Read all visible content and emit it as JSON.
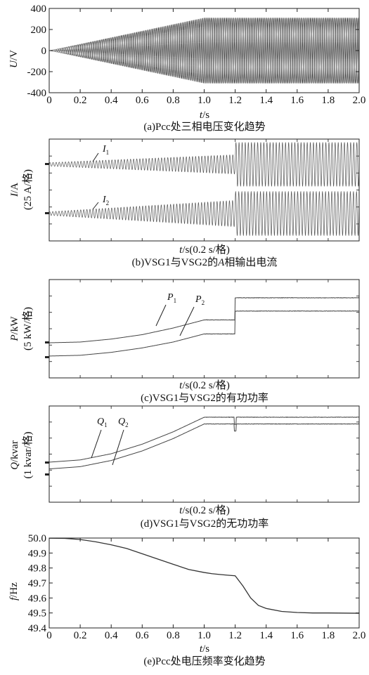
{
  "chart_data": [
    {
      "type": "line",
      "caption": "(a)Pcc处三相电压变化趋势",
      "xlabel_var": "t",
      "xlabel_unit": "/s",
      "ylabel_var": "U",
      "ylabel_unit": "/V",
      "xlim": [
        0,
        2.0
      ],
      "ylim": [
        -400,
        400
      ],
      "x_ticks": [
        "0",
        "0.2",
        "0.4",
        "0.6",
        "0.8",
        "1.0",
        "1.2",
        "1.4",
        "1.6",
        "1.8",
        "2.0"
      ],
      "y_ticks": [
        "400",
        "200",
        "0",
        "-200",
        "-400"
      ],
      "envelope": {
        "x": [
          0,
          1.0,
          2.0
        ],
        "amplitude": [
          0,
          311,
          311
        ]
      },
      "series": [
        {
          "style": "three-phase sinusoid"
        }
      ]
    },
    {
      "type": "line",
      "caption": "(b)VSG1与VSG2的A相输出电流",
      "xlabel": "t/s(0.2 s/格)",
      "ylabel": "I/A",
      "ylabel2": "(25 A/格)",
      "series": [
        {
          "name": "I",
          "sub": "1",
          "envelope_x": [
            0,
            1.2,
            1.2,
            2.0
          ],
          "amplitude_div": [
            0.1,
            0.55,
            1.25,
            1.25
          ]
        },
        {
          "name": "I",
          "sub": "2",
          "envelope_x": [
            0,
            1.2,
            1.2,
            2.0
          ],
          "amplitude_div": [
            0.1,
            0.75,
            1.25,
            1.25
          ]
        }
      ]
    },
    {
      "type": "line",
      "caption": "(c)VSG1与VSG2的有功功率",
      "xlabel": "t/s(0.2 s/格)",
      "ylabel": "P/kW",
      "ylabel2": "(5 kW/格)",
      "series": [
        {
          "name": "P",
          "sub": "1",
          "x": [
            0,
            0.2,
            0.4,
            0.6,
            0.8,
            1.0,
            1.2,
            1.2,
            2.0
          ],
          "y_div": [
            0,
            0.05,
            0.25,
            0.55,
            1.0,
            1.55,
            1.55,
            3.05,
            3.05
          ]
        },
        {
          "name": "P",
          "sub": "2",
          "x": [
            0,
            0.2,
            0.4,
            0.6,
            0.8,
            1.0,
            1.2,
            1.2,
            2.0
          ],
          "y_div": [
            -0.9,
            -0.85,
            -0.65,
            -0.35,
            0.05,
            0.6,
            0.6,
            2.15,
            2.15
          ]
        }
      ]
    },
    {
      "type": "line",
      "caption": "(d)VSG1与VSG2的无功功率",
      "xlabel": "t/s(0.2 s/格)",
      "ylabel": "Q/kvar",
      "ylabel2": "(1 kvar/格)",
      "series": [
        {
          "name": "Q",
          "sub": "1",
          "x": [
            0,
            0.2,
            0.4,
            0.6,
            0.8,
            1.0,
            2.0
          ],
          "y_div": [
            0,
            0.2,
            0.75,
            1.6,
            2.7,
            4.0,
            4.0
          ]
        },
        {
          "name": "Q",
          "sub": "2",
          "x": [
            0,
            0.2,
            0.4,
            0.6,
            0.8,
            1.0,
            2.0
          ],
          "y_div": [
            -0.6,
            -0.4,
            0.15,
            1.0,
            2.1,
            3.4,
            3.4
          ]
        }
      ]
    },
    {
      "type": "line",
      "caption": "(e)Pcc处电压频率变化趋势",
      "xlabel_var": "t",
      "xlabel_unit": "/s",
      "ylabel_var": "f",
      "ylabel_unit": "/Hz",
      "xlim": [
        0,
        2.0
      ],
      "ylim": [
        49.4,
        50.0
      ],
      "x_ticks": [
        "0",
        "0.2",
        "0.4",
        "0.6",
        "0.8",
        "1.0",
        "1.2",
        "1.4",
        "1.6",
        "1.8",
        "2.0"
      ],
      "y_ticks": [
        "50.0",
        "49.9",
        "49.8",
        "49.7",
        "49.6",
        "49.5",
        "49.4"
      ],
      "series": [
        {
          "x": [
            0,
            0.1,
            0.2,
            0.3,
            0.4,
            0.5,
            0.6,
            0.7,
            0.8,
            0.9,
            1.0,
            1.05,
            1.1,
            1.15,
            1.2,
            1.25,
            1.3,
            1.35,
            1.4,
            1.5,
            1.6,
            1.7,
            1.8,
            2.0
          ],
          "y": [
            49.999,
            49.998,
            49.99,
            49.975,
            49.955,
            49.93,
            49.895,
            49.86,
            49.825,
            49.79,
            49.77,
            49.762,
            49.757,
            49.752,
            49.748,
            49.68,
            49.6,
            49.55,
            49.53,
            49.51,
            49.503,
            49.5,
            49.5,
            49.498
          ]
        }
      ]
    }
  ]
}
